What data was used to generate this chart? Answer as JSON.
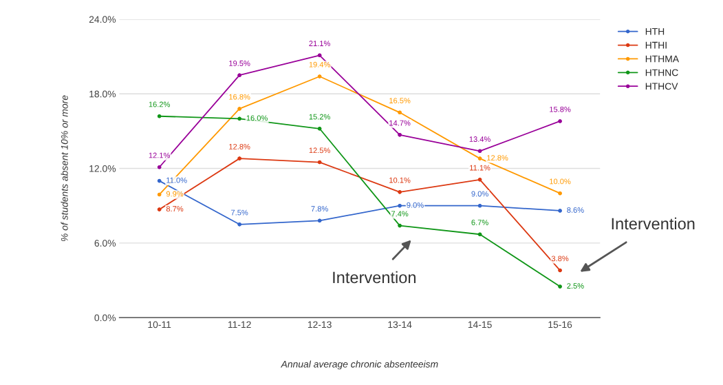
{
  "chart_data": {
    "type": "line",
    "xlabel": "Annual average chronic absenteeism",
    "ylabel": "% of students absent 10% or more",
    "categories": [
      "10-11",
      "11-12",
      "12-13",
      "13-14",
      "14-15",
      "15-16"
    ],
    "series": [
      {
        "name": "HTH",
        "color": "#3366cc",
        "values": [
          11.0,
          7.5,
          7.8,
          9.0,
          9.0,
          8.6
        ],
        "value_labels": [
          "11.0%",
          "7.5%",
          "7.8%",
          "9.0%",
          "9.0%",
          "8.6%"
        ]
      },
      {
        "name": "HTHI",
        "color": "#dc3912",
        "values": [
          8.7,
          12.8,
          12.5,
          10.1,
          11.1,
          3.8
        ],
        "value_labels": [
          "8.7%",
          "12.8%",
          "12.5%",
          "10.1%",
          "11.1%",
          "3.8%"
        ]
      },
      {
        "name": "HTHMA",
        "color": "#ff9900",
        "values": [
          9.9,
          16.8,
          19.4,
          16.5,
          12.8,
          10.0
        ],
        "value_labels": [
          "9.9%",
          "16.8%",
          "19.4%",
          "16.5%",
          "12.8%",
          "10.0%"
        ]
      },
      {
        "name": "HTHNC",
        "color": "#109618",
        "values": [
          16.2,
          16.0,
          15.2,
          7.4,
          6.7,
          2.5
        ],
        "value_labels": [
          "16.2%",
          "16.0%",
          "15.2%",
          "7.4%",
          "6.7%",
          "2.5%"
        ]
      },
      {
        "name": "HTHCV",
        "color": "#990099",
        "values": [
          12.1,
          19.5,
          21.1,
          14.7,
          13.4,
          15.8
        ],
        "value_labels": [
          "12.1%",
          "19.5%",
          "21.1%",
          "14.7%",
          "13.4%",
          "15.8%"
        ]
      }
    ],
    "ylim": [
      0,
      24
    ],
    "yticks": [
      {
        "value": 0,
        "label": "0.0%"
      },
      {
        "value": 6,
        "label": "6.0%"
      },
      {
        "value": 12,
        "label": "12.0%"
      },
      {
        "value": 18,
        "label": "18.0%"
      },
      {
        "value": 24,
        "label": "24.0%"
      }
    ],
    "grid": "y",
    "legend": "top right",
    "marker": "circle",
    "line_style": "solid",
    "annotations": [
      "Intervention",
      "Intervention"
    ]
  }
}
